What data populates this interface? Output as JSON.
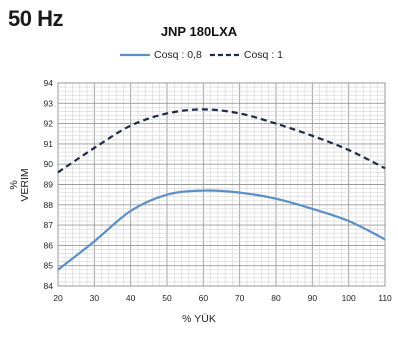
{
  "header": {
    "frequency": "50 Hz"
  },
  "chart_data": {
    "type": "line",
    "title": "JNP 180LXA",
    "xlabel": "% YÜK",
    "ylabel_unit": "%",
    "ylabel": "VERIM",
    "xlim": [
      20,
      110
    ],
    "ylim": [
      84,
      94
    ],
    "x_ticks": [
      "20",
      "30",
      "40",
      "50",
      "60",
      "70",
      "80",
      "90",
      "100",
      "110"
    ],
    "y_ticks": [
      "84",
      "85",
      "86",
      "87",
      "88",
      "89",
      "90",
      "91",
      "92",
      "93",
      "94"
    ],
    "grid": true,
    "legend_position": "top",
    "series": [
      {
        "name": "Cosq : 0,8",
        "style": "solid",
        "color": "#5b8fc7",
        "x": [
          20,
          30,
          40,
          50,
          60,
          70,
          80,
          90,
          100,
          110
        ],
        "y": [
          84.8,
          86.2,
          87.7,
          88.5,
          88.7,
          88.6,
          88.3,
          87.8,
          87.2,
          86.3
        ]
      },
      {
        "name": "Cosq : 1",
        "style": "dashed",
        "color": "#1f2a4a",
        "x": [
          20,
          30,
          40,
          50,
          60,
          70,
          80,
          90,
          100,
          110
        ],
        "y": [
          89.6,
          90.8,
          91.9,
          92.5,
          92.7,
          92.5,
          92.0,
          91.4,
          90.7,
          89.8
        ]
      }
    ]
  }
}
